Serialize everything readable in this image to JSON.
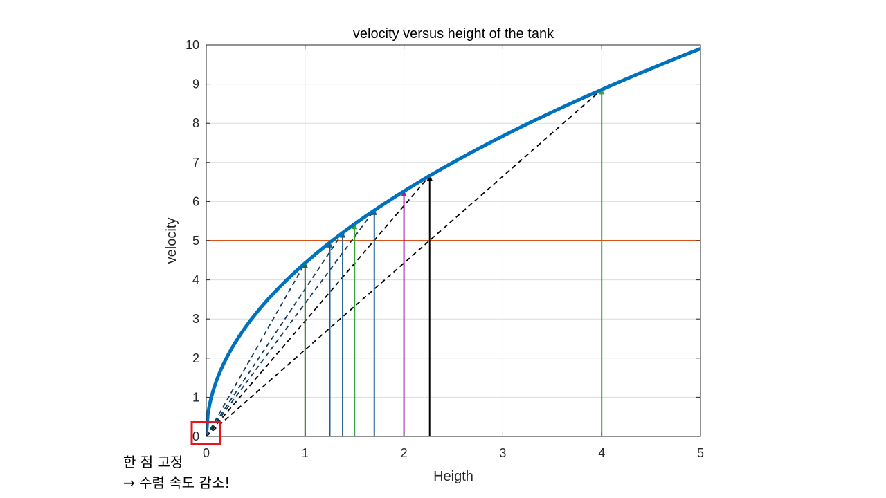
{
  "chart_data": {
    "type": "line",
    "title": "velocity versus height of the tank",
    "xlabel": "Heigth",
    "ylabel": "velocity",
    "xlim": [
      0,
      5
    ],
    "ylim": [
      0,
      10
    ],
    "xticks": [
      "0",
      "1",
      "2",
      "3",
      "4",
      "5"
    ],
    "yticks": [
      "0",
      "1",
      "2",
      "3",
      "4",
      "5",
      "6",
      "7",
      "8",
      "9",
      "10"
    ],
    "grid": true,
    "curve": {
      "formula": "v = sqrt(2*9.81*h)",
      "x": [
        0,
        0.05,
        0.1,
        0.2,
        0.3,
        0.5,
        0.75,
        1,
        1.25,
        1.5,
        1.75,
        2,
        2.25,
        2.5,
        3,
        3.5,
        4,
        4.5,
        5
      ],
      "y": [
        0,
        0.99,
        1.4,
        1.98,
        2.43,
        3.13,
        3.84,
        4.43,
        4.95,
        5.42,
        5.86,
        6.26,
        6.64,
        7.0,
        7.67,
        8.29,
        8.86,
        9.4,
        9.9
      ],
      "color": "#0072BD"
    },
    "target_line": {
      "y": 5,
      "color": "#D95319"
    },
    "iterations": [
      {
        "x": 4.0,
        "y": 8.86,
        "color": "#3aa53a",
        "secant": true
      },
      {
        "x": 2.26,
        "y": 6.66,
        "color": "#000000",
        "secant": true
      },
      {
        "x": 2.0,
        "y": 6.26,
        "color": "#a3239f",
        "secant": false
      },
      {
        "x": 1.7,
        "y": 5.78,
        "color": "#1f5f8b",
        "secant": true
      },
      {
        "x": 1.5,
        "y": 5.42,
        "color": "#3aa53a",
        "secant": false
      },
      {
        "x": 1.38,
        "y": 5.2,
        "color": "#1f5f8b",
        "secant": true
      },
      {
        "x": 1.25,
        "y": 4.95,
        "color": "#1f5f8b",
        "secant": false
      },
      {
        "x": 1.0,
        "y": 4.43,
        "color": "#1b6b2a",
        "secant": true
      }
    ],
    "fixed_point": {
      "x": 0,
      "y": 0,
      "highlight_color": "#e8141b"
    }
  },
  "annotation": {
    "line1": "한 점 고정",
    "line2": "→ 수렴 속도 감소!"
  }
}
